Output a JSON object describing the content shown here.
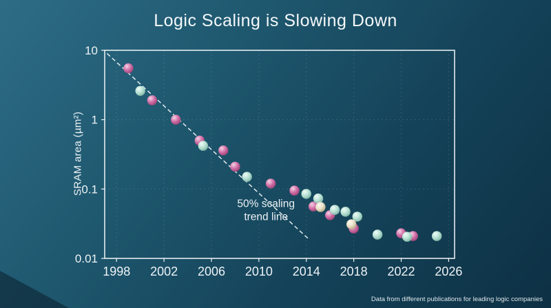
{
  "chart_data": {
    "type": "scatter",
    "title": "Logic Scaling is Slowing Down",
    "ylabel": "SRAM area (µm²)",
    "xlabel": "",
    "yscale": "log",
    "grid": true,
    "xlim": [
      1997,
      2026.5
    ],
    "ylim": [
      0.01,
      10
    ],
    "xticks": [
      1998,
      2002,
      2006,
      2010,
      2014,
      2018,
      2022,
      2026
    ],
    "yticks": [
      10,
      1,
      0.1,
      0.01
    ],
    "ytick_labels": [
      "10",
      "1",
      "0.1",
      "0.01"
    ],
    "colors": {
      "background_top_left": "#2e6c86",
      "background_bottom_right": "#0d3044",
      "axis": "#f2f6f8",
      "trend_line": "#fafdff"
    },
    "trend_line": {
      "label": "50% scaling trend line",
      "style": "dashed",
      "x_start": 1997.2,
      "v_start": 9.0,
      "x_end": 2014.2,
      "v_end": 0.019
    },
    "annotation": {
      "lines": [
        "50% scaling",
        "trend line"
      ],
      "x": 2010.6,
      "v": 0.055
    },
    "series": [
      {
        "name": "pink",
        "base": "#cf6da6",
        "highlight": "#f6d2e4",
        "shade": "#9a4474",
        "points": [
          [
            1999,
            5.5
          ],
          [
            2001,
            1.9
          ],
          [
            2003,
            1.0
          ],
          [
            2005,
            0.5
          ],
          [
            2007,
            0.36
          ],
          [
            2008,
            0.21
          ],
          [
            2011,
            0.12
          ],
          [
            2013,
            0.095
          ],
          [
            2014.6,
            0.056
          ],
          [
            2016,
            0.042
          ],
          [
            2018,
            0.027
          ],
          [
            2022,
            0.023
          ],
          [
            2023,
            0.021
          ]
        ]
      },
      {
        "name": "mint",
        "base": "#b5e0d2",
        "highlight": "#f0fbf7",
        "shade": "#7fb3a4",
        "points": [
          [
            2000,
            2.6
          ],
          [
            2005.3,
            0.42
          ],
          [
            2009,
            0.15
          ],
          [
            2014,
            0.085
          ],
          [
            2015,
            0.073
          ],
          [
            2016.4,
            0.05
          ],
          [
            2017.3,
            0.047
          ],
          [
            2018.3,
            0.04
          ],
          [
            2020,
            0.022
          ],
          [
            2022.5,
            0.0205
          ],
          [
            2025,
            0.021
          ]
        ]
      },
      {
        "name": "cream",
        "base": "#e8dfc6",
        "highlight": "#fdfaf0",
        "shade": "#b3a884",
        "points": [
          [
            2015.2,
            0.055
          ],
          [
            2017.8,
            0.031
          ]
        ]
      }
    ],
    "footnote": "Data from different publications for leading logic companies"
  }
}
